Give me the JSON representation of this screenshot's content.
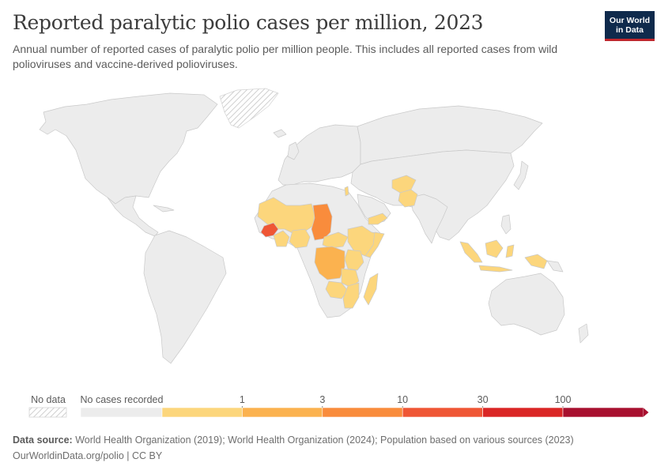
{
  "header": {
    "title": "Reported paralytic polio cases per million, 2023",
    "subtitle": "Annual number of reported cases of paralytic polio per million people. This includes all reported cases from wild polioviruses and vaccine-derived polioviruses."
  },
  "logo": {
    "line1": "Our World",
    "line2": "in Data"
  },
  "legend": {
    "no_data_label": "No data",
    "zero_label": "No cases recorded",
    "thresholds": [
      "1",
      "3",
      "10",
      "30",
      "100"
    ],
    "colors": [
      "#ececec",
      "#fcd67c",
      "#fbb24f",
      "#f98c3c",
      "#ef5635",
      "#da2625",
      "#a8102f"
    ]
  },
  "footer": {
    "source_label": "Data source:",
    "source_text": "World Health Organization (2019); World Health Organization (2024); Population based on various sources (2023)",
    "credit": "OurWorldinData.org/polio | CC BY"
  },
  "chart_data": {
    "type": "map",
    "title": "Reported paralytic polio cases per million, 2023",
    "bins": [
      {
        "label": "No cases recorded",
        "range": [
          0,
          0
        ],
        "color": "#ececec"
      },
      {
        "label": "0–1",
        "range": [
          0,
          1
        ],
        "color": "#fcd67c"
      },
      {
        "label": "1–3",
        "range": [
          1,
          3
        ],
        "color": "#fbb24f"
      },
      {
        "label": "3–10",
        "range": [
          3,
          10
        ],
        "color": "#f98c3c"
      },
      {
        "label": "10–30",
        "range": [
          10,
          30
        ],
        "color": "#ef5635"
      },
      {
        "label": "30–100",
        "range": [
          30,
          100
        ],
        "color": "#da2625"
      },
      {
        "label": "100+",
        "range": [
          100,
          null
        ],
        "color": "#a8102f"
      }
    ],
    "countries": [
      {
        "name": "Chad",
        "bin": "3–10"
      },
      {
        "name": "Guinea",
        "bin": "10–30"
      },
      {
        "name": "Democratic Republic of Congo",
        "bin": "1–3"
      },
      {
        "name": "Mali",
        "bin": "0–1"
      },
      {
        "name": "Burkina Faso",
        "bin": "0–1"
      },
      {
        "name": "Niger",
        "bin": "0–1"
      },
      {
        "name": "Nigeria",
        "bin": "0–1"
      },
      {
        "name": "Cote d'Ivoire",
        "bin": "0–1"
      },
      {
        "name": "Benin",
        "bin": "0–1"
      },
      {
        "name": "Central African Republic",
        "bin": "0–1"
      },
      {
        "name": "Ethiopia",
        "bin": "0–1"
      },
      {
        "name": "Somalia",
        "bin": "0–1"
      },
      {
        "name": "Kenya",
        "bin": "0–1"
      },
      {
        "name": "Tanzania",
        "bin": "0–1"
      },
      {
        "name": "Zambia",
        "bin": "0–1"
      },
      {
        "name": "Mozambique",
        "bin": "0–1"
      },
      {
        "name": "Malawi",
        "bin": "0–1"
      },
      {
        "name": "Zimbabwe",
        "bin": "0–1"
      },
      {
        "name": "Madagascar",
        "bin": "0–1"
      },
      {
        "name": "Yemen",
        "bin": "0–1"
      },
      {
        "name": "Israel",
        "bin": "0–1"
      },
      {
        "name": "Afghanistan",
        "bin": "0–1"
      },
      {
        "name": "Pakistan",
        "bin": "0–1"
      },
      {
        "name": "Indonesia",
        "bin": "0–1"
      }
    ]
  }
}
